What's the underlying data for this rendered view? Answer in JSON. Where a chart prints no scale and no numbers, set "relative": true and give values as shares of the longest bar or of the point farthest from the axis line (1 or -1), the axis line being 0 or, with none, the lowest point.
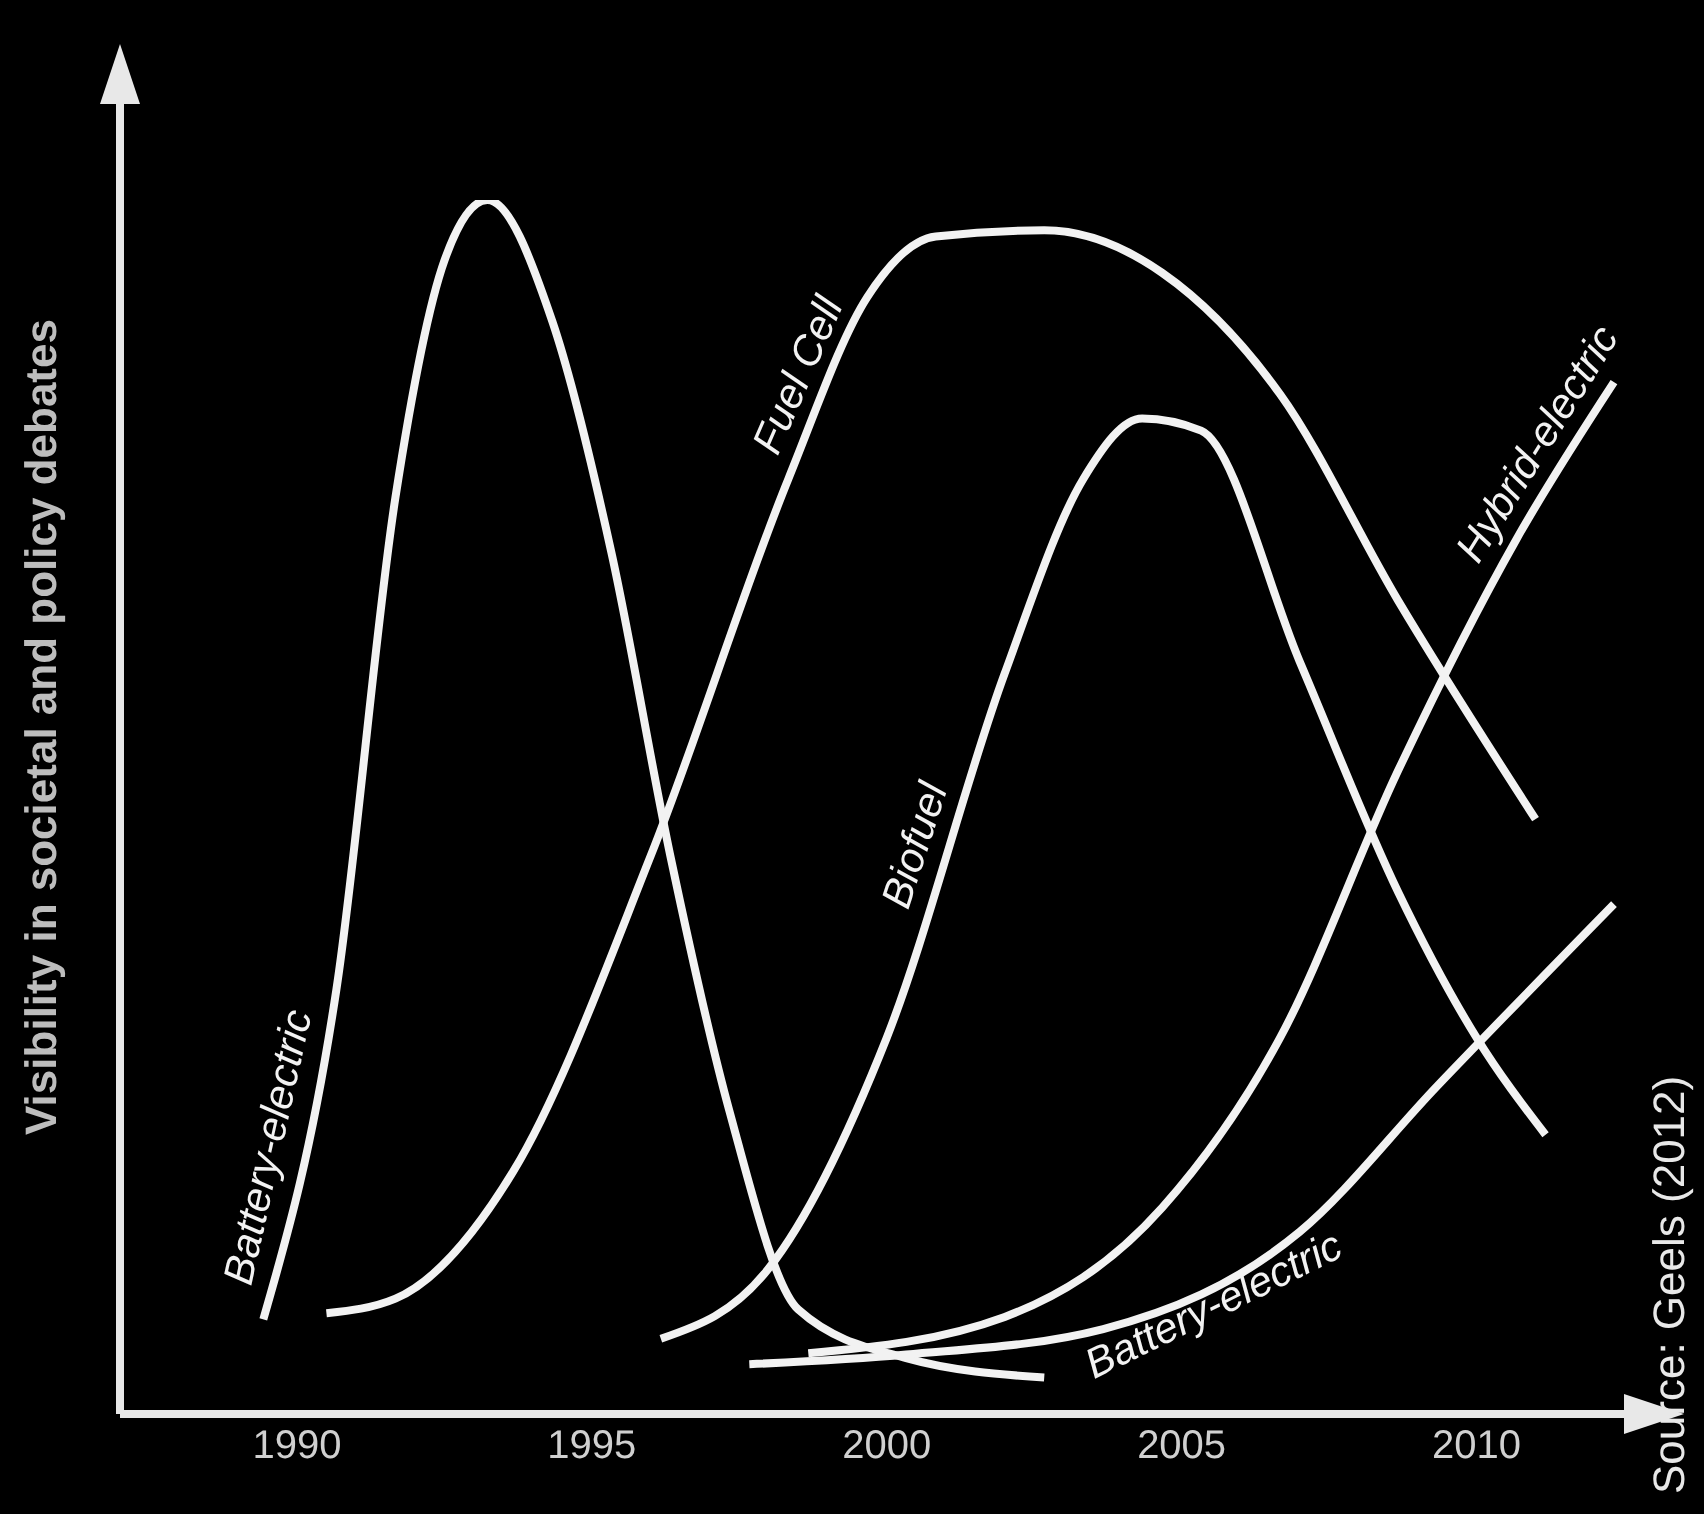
{
  "chart_data": {
    "type": "line",
    "relative": true,
    "ylabel": "Visibility in societal and policy debates",
    "annotations": [
      "Source: Geels (2012)"
    ],
    "xlim": [
      1987,
      2012.5
    ],
    "xticks": [
      1990,
      1995,
      2000,
      2005,
      2010
    ],
    "marker": "none",
    "line_style": "solid",
    "series": [
      {
        "name": "Battery-electric",
        "color": "#f2f2f2",
        "x": [
          1989.43,
          1990.67,
          1991.67,
          1992.5,
          1993.23,
          1994.33,
          1995.33,
          1996.33,
          1997.33,
          1998.5,
          2000.33,
          2002.67
        ],
        "values": [
          0.078,
          0.35,
          0.755,
          0.95,
          1,
          0.9,
          0.71,
          0.46,
          0.25,
          0.086,
          0.046,
          0.03
        ]
      },
      {
        "name": "Fuel Cell",
        "color": "#f2f2f2",
        "x": [
          1990.5,
          1991.67,
          1993.67,
          1996,
          1998.33,
          1999.67,
          2000.83,
          2002.67,
          2004.67,
          2006.67,
          2008.67,
          2011
        ],
        "values": [
          0.083,
          0.095,
          0.2,
          0.46,
          0.77,
          0.92,
          0.97,
          0.975,
          0.94,
          0.84,
          0.67,
          0.49
        ]
      },
      {
        "name": "Biofuel",
        "color": "#f2f2f2",
        "x": [
          1996.17,
          1998,
          2000,
          2002,
          2003.33,
          2004.33,
          2005.33,
          2007,
          2008.67,
          2010,
          2011.17
        ],
        "values": [
          0.062,
          0.12,
          0.31,
          0.61,
          0.77,
          0.82,
          0.81,
          0.62,
          0.43,
          0.31,
          0.23
        ]
      },
      {
        "name": "Hybrid-electric",
        "color": "#f2f2f2",
        "x": [
          1998.67,
          2002,
          2004.67,
          2006.67,
          2008.67,
          2010.67,
          2012.33
        ],
        "values": [
          0.05,
          0.08,
          0.17,
          0.31,
          0.53,
          0.72,
          0.85
        ]
      },
      {
        "name": "Battery-electric",
        "color": "#f2f2f2",
        "x": [
          1997.67,
          2000.33,
          2003.67,
          2007,
          2009.33,
          2012.33
        ],
        "values": [
          0.041,
          0.049,
          0.07,
          0.15,
          0.27,
          0.42
        ]
      }
    ]
  }
}
